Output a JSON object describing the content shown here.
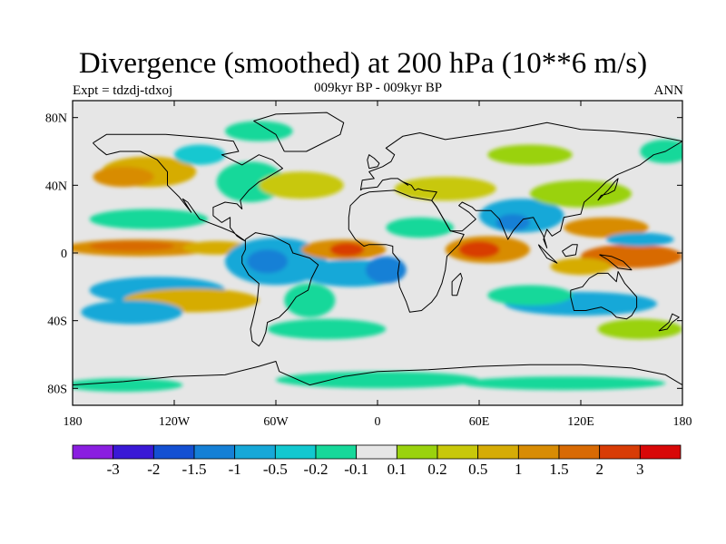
{
  "header": {
    "title": "Divergence (smoothed) at 200 hPa (10**6 m/s)",
    "expt": "Expt = tdzdj-tdxoj",
    "period": "009kyr BP - 009kyr BP",
    "season": "ANN"
  },
  "map": {
    "lon_range": [
      -180,
      180
    ],
    "lat_range": [
      -90,
      90
    ],
    "x_ticks": [
      {
        "lon": -180,
        "label": "180"
      },
      {
        "lon": -120,
        "label": "120W"
      },
      {
        "lon": -60,
        "label": "60W"
      },
      {
        "lon": 0,
        "label": "0"
      },
      {
        "lon": 60,
        "label": "60E"
      },
      {
        "lon": 120,
        "label": "120E"
      },
      {
        "lon": 180,
        "label": "180"
      }
    ],
    "y_ticks": [
      {
        "lat": 80,
        "label": "80N"
      },
      {
        "lat": 40,
        "label": "40N"
      },
      {
        "lat": 0,
        "label": "0"
      },
      {
        "lat": -40,
        "label": "40S"
      },
      {
        "lat": -80,
        "label": "80S"
      }
    ]
  },
  "colorbar": {
    "colors": [
      "#8a1ee0",
      "#3a19d6",
      "#1450d2",
      "#1580d6",
      "#16a8d8",
      "#12c8d0",
      "#16d89a",
      "#e6e6e6",
      "#9ad20e",
      "#c8c80a",
      "#d6ac06",
      "#d88c04",
      "#d86a04",
      "#d83c06",
      "#d80808"
    ],
    "labels": [
      "-3",
      "-2",
      "-1.5",
      "-1",
      "-0.5",
      "-0.2",
      "-0.1",
      "0.1",
      "0.2",
      "0.5",
      "1",
      "1.5",
      "2",
      "3"
    ]
  },
  "blobs": [
    {
      "lon": -135,
      "lat": 48,
      "rlon": 28,
      "rlat": 9,
      "color": "#d6ac06"
    },
    {
      "lon": -150,
      "lat": 45,
      "rlon": 18,
      "rlat": 6,
      "color": "#d88c04"
    },
    {
      "lon": -75,
      "lat": 42,
      "rlon": 20,
      "rlat": 12,
      "color": "#16d89a"
    },
    {
      "lon": -45,
      "lat": 40,
      "rlon": 25,
      "rlat": 8,
      "color": "#c8c80a"
    },
    {
      "lon": -105,
      "lat": 58,
      "rlon": 15,
      "rlat": 6,
      "color": "#12c8d0"
    },
    {
      "lon": -135,
      "lat": 20,
      "rlon": 35,
      "rlat": 6,
      "color": "#16d89a"
    },
    {
      "lon": -140,
      "lat": 3,
      "rlon": 45,
      "rlat": 5,
      "color": "#d88c04"
    },
    {
      "lon": -145,
      "lat": 4,
      "rlon": 25,
      "rlat": 3,
      "color": "#d86a04"
    },
    {
      "lon": -95,
      "lat": 3,
      "rlon": 20,
      "rlat": 4,
      "color": "#d6ac06"
    },
    {
      "lon": -60,
      "lat": -5,
      "rlon": 30,
      "rlat": 14,
      "color": "#16a8d8"
    },
    {
      "lon": -65,
      "lat": -5,
      "rlon": 12,
      "rlat": 7,
      "color": "#1580d6"
    },
    {
      "lon": -130,
      "lat": -22,
      "rlon": 40,
      "rlat": 8,
      "color": "#16a8d8"
    },
    {
      "lon": -110,
      "lat": -28,
      "rlon": 40,
      "rlat": 7,
      "color": "#d6ac06"
    },
    {
      "lon": -145,
      "lat": -35,
      "rlon": 30,
      "rlat": 7,
      "color": "#16a8d8"
    },
    {
      "lon": -20,
      "lat": 2,
      "rlon": 25,
      "rlat": 6,
      "color": "#d88c04"
    },
    {
      "lon": -18,
      "lat": 2,
      "rlon": 10,
      "rlat": 4,
      "color": "#d83c06"
    },
    {
      "lon": -15,
      "lat": -12,
      "rlon": 30,
      "rlat": 8,
      "color": "#16a8d8"
    },
    {
      "lon": 5,
      "lat": -10,
      "rlon": 12,
      "rlat": 8,
      "color": "#1580d6"
    },
    {
      "lon": -30,
      "lat": -45,
      "rlon": 35,
      "rlat": 6,
      "color": "#16d89a"
    },
    {
      "lon": 25,
      "lat": 15,
      "rlon": 20,
      "rlat": 6,
      "color": "#16d89a"
    },
    {
      "lon": 40,
      "lat": 38,
      "rlon": 30,
      "rlat": 7,
      "color": "#c8c80a"
    },
    {
      "lon": 65,
      "lat": 2,
      "rlon": 25,
      "rlat": 8,
      "color": "#d88c04"
    },
    {
      "lon": 60,
      "lat": 2,
      "rlon": 12,
      "rlat": 5,
      "color": "#d83c06"
    },
    {
      "lon": 85,
      "lat": 22,
      "rlon": 25,
      "rlat": 10,
      "color": "#16a8d8"
    },
    {
      "lon": 80,
      "lat": 18,
      "rlon": 10,
      "rlat": 5,
      "color": "#1580d6"
    },
    {
      "lon": 120,
      "lat": 35,
      "rlon": 30,
      "rlat": 8,
      "color": "#9ad20e"
    },
    {
      "lon": 135,
      "lat": 15,
      "rlon": 25,
      "rlat": 6,
      "color": "#d88c04"
    },
    {
      "lon": 150,
      "lat": -2,
      "rlon": 30,
      "rlat": 7,
      "color": "#d86a04"
    },
    {
      "lon": 155,
      "lat": 8,
      "rlon": 20,
      "rlat": 4,
      "color": "#16a8d8"
    },
    {
      "lon": 120,
      "lat": -8,
      "rlon": 18,
      "rlat": 5,
      "color": "#d6ac06"
    },
    {
      "lon": 120,
      "lat": -30,
      "rlon": 45,
      "rlat": 7,
      "color": "#16a8d8"
    },
    {
      "lon": 90,
      "lat": -25,
      "rlon": 25,
      "rlat": 6,
      "color": "#16d89a"
    },
    {
      "lon": 155,
      "lat": -45,
      "rlon": 25,
      "rlat": 6,
      "color": "#9ad20e"
    },
    {
      "lon": -40,
      "lat": -28,
      "rlon": 15,
      "rlat": 10,
      "color": "#16d89a"
    },
    {
      "lon": 0,
      "lat": -75,
      "rlon": 60,
      "rlat": 5,
      "color": "#16d89a"
    },
    {
      "lon": 110,
      "lat": -77,
      "rlon": 60,
      "rlat": 4,
      "color": "#16d89a"
    },
    {
      "lon": -150,
      "lat": -78,
      "rlon": 35,
      "rlat": 4,
      "color": "#16d89a"
    },
    {
      "lon": -70,
      "lat": 72,
      "rlon": 20,
      "rlat": 6,
      "color": "#16d89a"
    },
    {
      "lon": 170,
      "lat": 60,
      "rlon": 15,
      "rlat": 7,
      "color": "#16d89a"
    },
    {
      "lon": 90,
      "lat": 58,
      "rlon": 25,
      "rlat": 6,
      "color": "#9ad20e"
    }
  ],
  "coastlines": [
    [
      [
        -168,
        65
      ],
      [
        -160,
        70
      ],
      [
        -140,
        70
      ],
      [
        -125,
        70
      ],
      [
        -100,
        68
      ],
      [
        -85,
        66
      ],
      [
        -82,
        60
      ],
      [
        -92,
        58
      ],
      [
        -80,
        52
      ],
      [
        -70,
        58
      ],
      [
        -62,
        55
      ],
      [
        -56,
        50
      ],
      [
        -66,
        44
      ],
      [
        -70,
        42
      ],
      [
        -76,
        37
      ],
      [
        -81,
        31
      ],
      [
        -80,
        26
      ],
      [
        -83,
        29
      ],
      [
        -90,
        30
      ],
      [
        -97,
        27
      ],
      [
        -97,
        22
      ],
      [
        -92,
        18
      ],
      [
        -87,
        21
      ],
      [
        -87,
        15
      ],
      [
        -83,
        10
      ],
      [
        -80,
        8
      ],
      [
        -78,
        7
      ],
      [
        -85,
        12
      ],
      [
        -92,
        15
      ],
      [
        -105,
        20
      ],
      [
        -112,
        30
      ],
      [
        -115,
        32
      ],
      [
        -110,
        24
      ],
      [
        -117,
        33
      ],
      [
        -124,
        40
      ],
      [
        -124,
        48
      ],
      [
        -130,
        55
      ],
      [
        -140,
        60
      ],
      [
        -152,
        60
      ],
      [
        -160,
        58
      ],
      [
        -165,
        62
      ],
      [
        -168,
        65
      ]
    ],
    [
      [
        -78,
        8
      ],
      [
        -72,
        12
      ],
      [
        -62,
        10
      ],
      [
        -52,
        5
      ],
      [
        -50,
        0
      ],
      [
        -40,
        -3
      ],
      [
        -35,
        -7
      ],
      [
        -39,
        -15
      ],
      [
        -41,
        -22
      ],
      [
        -48,
        -26
      ],
      [
        -53,
        -33
      ],
      [
        -58,
        -38
      ],
      [
        -65,
        -41
      ],
      [
        -66,
        -47
      ],
      [
        -68,
        -52
      ],
      [
        -70,
        -55
      ],
      [
        -74,
        -52
      ],
      [
        -75,
        -45
      ],
      [
        -73,
        -37
      ],
      [
        -71,
        -28
      ],
      [
        -70,
        -18
      ],
      [
        -76,
        -13
      ],
      [
        -80,
        -6
      ],
      [
        -80,
        -2
      ],
      [
        -78,
        2
      ],
      [
        -78,
        8
      ]
    ],
    [
      [
        -17,
        21
      ],
      [
        -16,
        28
      ],
      [
        -10,
        34
      ],
      [
        -5,
        36
      ],
      [
        10,
        37
      ],
      [
        20,
        33
      ],
      [
        32,
        31
      ],
      [
        35,
        27
      ],
      [
        43,
        13
      ],
      [
        51,
        11
      ],
      [
        48,
        5
      ],
      [
        41,
        -2
      ],
      [
        40,
        -10
      ],
      [
        38,
        -18
      ],
      [
        35,
        -25
      ],
      [
        32,
        -29
      ],
      [
        26,
        -34
      ],
      [
        19,
        -35
      ],
      [
        17,
        -29
      ],
      [
        13,
        -20
      ],
      [
        12,
        -12
      ],
      [
        13,
        -5
      ],
      [
        9,
        0
      ],
      [
        9,
        4
      ],
      [
        5,
        5
      ],
      [
        -5,
        5
      ],
      [
        -8,
        4
      ],
      [
        -13,
        8
      ],
      [
        -17,
        14
      ],
      [
        -17,
        21
      ]
    ],
    [
      [
        -10,
        37
      ],
      [
        -9,
        43
      ],
      [
        -2,
        44
      ],
      [
        -5,
        48
      ],
      [
        3,
        51
      ],
      [
        8,
        54
      ],
      [
        10,
        58
      ],
      [
        5,
        62
      ],
      [
        15,
        69
      ],
      [
        25,
        71
      ],
      [
        40,
        67
      ],
      [
        60,
        70
      ],
      [
        80,
        73
      ],
      [
        100,
        77
      ],
      [
        120,
        73
      ],
      [
        140,
        72
      ],
      [
        160,
        70
      ],
      [
        180,
        66
      ],
      [
        170,
        60
      ],
      [
        163,
        58
      ],
      [
        155,
        52
      ],
      [
        141,
        46
      ],
      [
        135,
        42
      ],
      [
        129,
        36
      ],
      [
        122,
        30
      ],
      [
        120,
        23
      ],
      [
        110,
        21
      ],
      [
        108,
        13
      ],
      [
        103,
        10
      ],
      [
        100,
        14
      ],
      [
        98,
        8
      ],
      [
        100,
        3
      ],
      [
        98,
        10
      ],
      [
        92,
        21
      ],
      [
        86,
        20
      ],
      [
        80,
        13
      ],
      [
        77,
        8
      ],
      [
        72,
        20
      ],
      [
        67,
        25
      ],
      [
        58,
        25
      ],
      [
        56,
        27
      ],
      [
        50,
        30
      ],
      [
        48,
        28
      ],
      [
        54,
        24
      ],
      [
        58,
        20
      ],
      [
        50,
        13
      ],
      [
        43,
        13
      ],
      [
        35,
        27
      ],
      [
        32,
        31
      ],
      [
        35,
        36
      ],
      [
        27,
        37
      ],
      [
        24,
        38
      ],
      [
        22,
        37
      ],
      [
        20,
        40
      ],
      [
        15,
        42
      ],
      [
        18,
        40
      ],
      [
        12,
        44
      ],
      [
        8,
        44
      ],
      [
        3,
        43
      ],
      [
        0,
        39
      ],
      [
        -9,
        38
      ],
      [
        -10,
        37
      ]
    ],
    [
      [
        114,
        -22
      ],
      [
        114,
        -26
      ],
      [
        116,
        -34
      ],
      [
        123,
        -34
      ],
      [
        132,
        -32
      ],
      [
        138,
        -35
      ],
      [
        141,
        -38
      ],
      [
        147,
        -39
      ],
      [
        150,
        -37
      ],
      [
        153,
        -32
      ],
      [
        153,
        -26
      ],
      [
        146,
        -18
      ],
      [
        142,
        -11
      ],
      [
        141,
        -17
      ],
      [
        136,
        -12
      ],
      [
        130,
        -12
      ],
      [
        125,
        -15
      ],
      [
        121,
        -20
      ],
      [
        114,
        -22
      ]
    ],
    [
      [
        -55,
        60
      ],
      [
        -42,
        60
      ],
      [
        -22,
        70
      ],
      [
        -20,
        77
      ],
      [
        -30,
        83
      ],
      [
        -60,
        82
      ],
      [
        -73,
        78
      ],
      [
        -60,
        70
      ],
      [
        -55,
        60
      ]
    ],
    [
      [
        -180,
        -78
      ],
      [
        -150,
        -76
      ],
      [
        -120,
        -73
      ],
      [
        -90,
        -72
      ],
      [
        -70,
        -67
      ],
      [
        -60,
        -64
      ],
      [
        -58,
        -70
      ],
      [
        -40,
        -78
      ],
      [
        -20,
        -73
      ],
      [
        0,
        -70
      ],
      [
        30,
        -69
      ],
      [
        60,
        -67
      ],
      [
        90,
        -66
      ],
      [
        120,
        -66
      ],
      [
        150,
        -68
      ],
      [
        170,
        -72
      ],
      [
        180,
        -78
      ]
    ],
    [
      [
        -5,
        50
      ],
      [
        0,
        51
      ],
      [
        1,
        53
      ],
      [
        -2,
        56
      ],
      [
        -5,
        58
      ],
      [
        -6,
        55
      ],
      [
        -5,
        50
      ]
    ],
    [
      [
        130,
        31
      ],
      [
        132,
        34
      ],
      [
        136,
        35
      ],
      [
        140,
        37
      ],
      [
        141,
        40
      ],
      [
        142,
        44
      ],
      [
        140,
        42
      ],
      [
        136,
        37
      ],
      [
        130,
        31
      ]
    ],
    [
      [
        95,
        5
      ],
      [
        100,
        0
      ],
      [
        106,
        -6
      ],
      [
        100,
        -3
      ],
      [
        96,
        3
      ],
      [
        95,
        5
      ]
    ],
    [
      [
        109,
        1
      ],
      [
        111,
        -2
      ],
      [
        117,
        -1
      ],
      [
        118,
        5
      ],
      [
        115,
        5
      ],
      [
        109,
        1
      ]
    ],
    [
      [
        131,
        -1
      ],
      [
        138,
        -2
      ],
      [
        145,
        -5
      ],
      [
        150,
        -10
      ],
      [
        142,
        -9
      ],
      [
        136,
        -4
      ],
      [
        131,
        -1
      ]
    ],
    [
      [
        44,
        -25
      ],
      [
        47,
        -25
      ],
      [
        50,
        -15
      ],
      [
        49,
        -12
      ],
      [
        44,
        -17
      ],
      [
        44,
        -25
      ]
    ],
    [
      [
        166,
        -46
      ],
      [
        172,
        -41
      ],
      [
        174,
        -36
      ],
      [
        178,
        -38
      ],
      [
        174,
        -41
      ],
      [
        171,
        -45
      ],
      [
        166,
        -46
      ]
    ]
  ]
}
